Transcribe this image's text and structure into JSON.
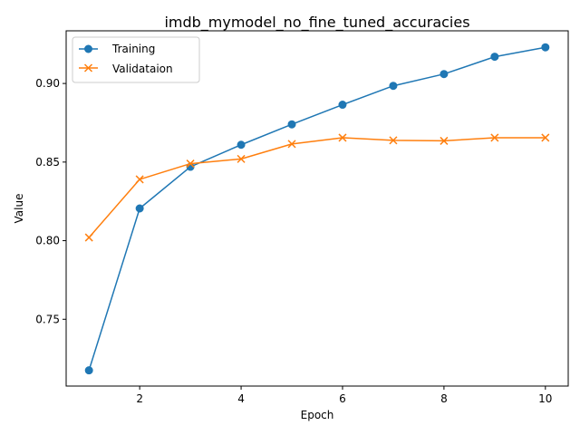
{
  "chart_data": {
    "type": "line",
    "title": "imdb_mymodel_no_fine_tuned_accuracies",
    "xlabel": "Epoch",
    "ylabel": "Value",
    "x": [
      1,
      2,
      3,
      4,
      5,
      6,
      7,
      8,
      9,
      10
    ],
    "xlim": [
      0.55,
      10.45
    ],
    "ylim": [
      0.7075,
      0.9335
    ],
    "xticks": [
      2,
      4,
      6,
      8,
      10
    ],
    "yticks": [
      0.75,
      0.8,
      0.85,
      0.9
    ],
    "ytick_labels": [
      "0.75",
      "0.80",
      "0.85",
      "0.90"
    ],
    "xtick_labels": [
      "2",
      "4",
      "6",
      "8",
      "10"
    ],
    "grid": false,
    "legend_position": "top-left",
    "series": [
      {
        "name": "Training",
        "color": "#1f77b4",
        "marker": "circle",
        "values": [
          0.7175,
          0.8205,
          0.847,
          0.861,
          0.874,
          0.8865,
          0.8985,
          0.906,
          0.917,
          0.923
        ]
      },
      {
        "name": "Validataion",
        "color": "#ff7f0e",
        "marker": "x",
        "values": [
          0.802,
          0.839,
          0.849,
          0.852,
          0.8615,
          0.8655,
          0.8638,
          0.8635,
          0.8655,
          0.8655
        ]
      }
    ]
  }
}
